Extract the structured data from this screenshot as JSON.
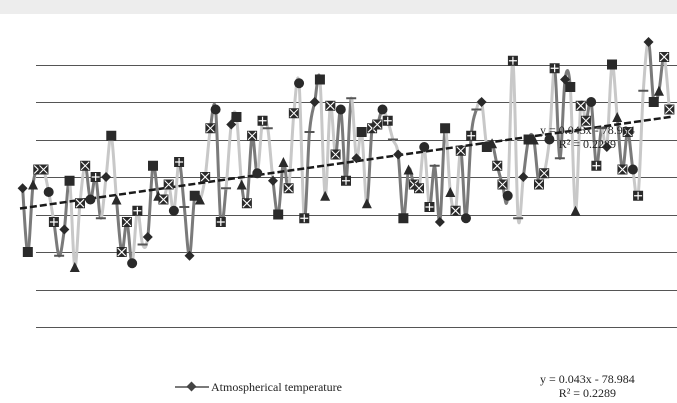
{
  "chart_data": {
    "type": "line",
    "title": "",
    "xlabel": "",
    "ylabel": "",
    "grid": true,
    "legend_placement": "bottom",
    "series": [
      {
        "name": "Atmospherical temperature",
        "values": [
          13.7,
          12.0,
          13.8,
          14.2,
          14.2,
          13.6,
          12.8,
          11.9,
          12.6,
          13.9,
          11.6,
          13.3,
          14.3,
          13.4,
          14.0,
          12.9,
          14.0,
          15.1,
          13.4,
          12.0,
          12.8,
          11.7,
          13.1,
          12.2,
          12.4,
          14.3,
          13.5,
          13.4,
          13.8,
          13.1,
          14.4,
          13.2,
          11.9,
          13.5,
          13.4,
          14.0,
          15.3,
          15.8,
          12.8,
          13.7,
          15.4,
          15.6,
          13.8,
          13.3,
          15.1,
          14.1,
          15.5,
          15.3,
          13.9,
          13.0,
          14.4,
          13.7,
          15.7,
          16.5,
          12.9,
          15.2,
          16.0,
          16.6,
          13.5,
          15.9,
          14.6,
          15.8,
          13.9,
          16.1,
          14.5,
          15.2,
          13.3,
          15.3,
          15.4,
          15.8,
          15.5,
          15.0,
          14.6,
          12.9,
          14.2,
          13.8,
          13.7,
          14.8,
          13.2,
          14.3,
          12.8,
          15.3,
          13.6,
          13.1,
          14.7,
          12.9,
          15.1,
          15.8,
          16.0,
          14.8,
          14.9,
          14.3,
          13.8,
          13.5,
          17.1,
          12.9,
          14.0,
          15.0,
          15.0,
          13.8,
          14.1,
          15.0,
          16.9,
          14.5,
          16.6,
          16.4,
          13.1,
          15.9,
          15.5,
          16.0,
          14.3,
          15.3,
          14.8,
          17.0,
          15.6,
          14.2,
          15.2,
          14.2,
          13.5,
          16.3,
          17.6,
          16.0,
          16.3,
          17.2,
          15.8
        ]
      }
    ],
    "trendline": {
      "slope": 0.043,
      "intercept": -78.984,
      "r2": 0.2289
    },
    "ylim": [
      10,
      18
    ],
    "colors": {
      "line_light": "#c8c8c8",
      "line_dark": "#7a7a7a",
      "marker": "#2a2a2a",
      "trend": "#1a1a1a",
      "grid": "#555555"
    }
  },
  "legend": {
    "series_label": "Atmospherical temperature",
    "equation": "y = 0.043x - 78.984",
    "r2": "R² = 0.2289"
  }
}
